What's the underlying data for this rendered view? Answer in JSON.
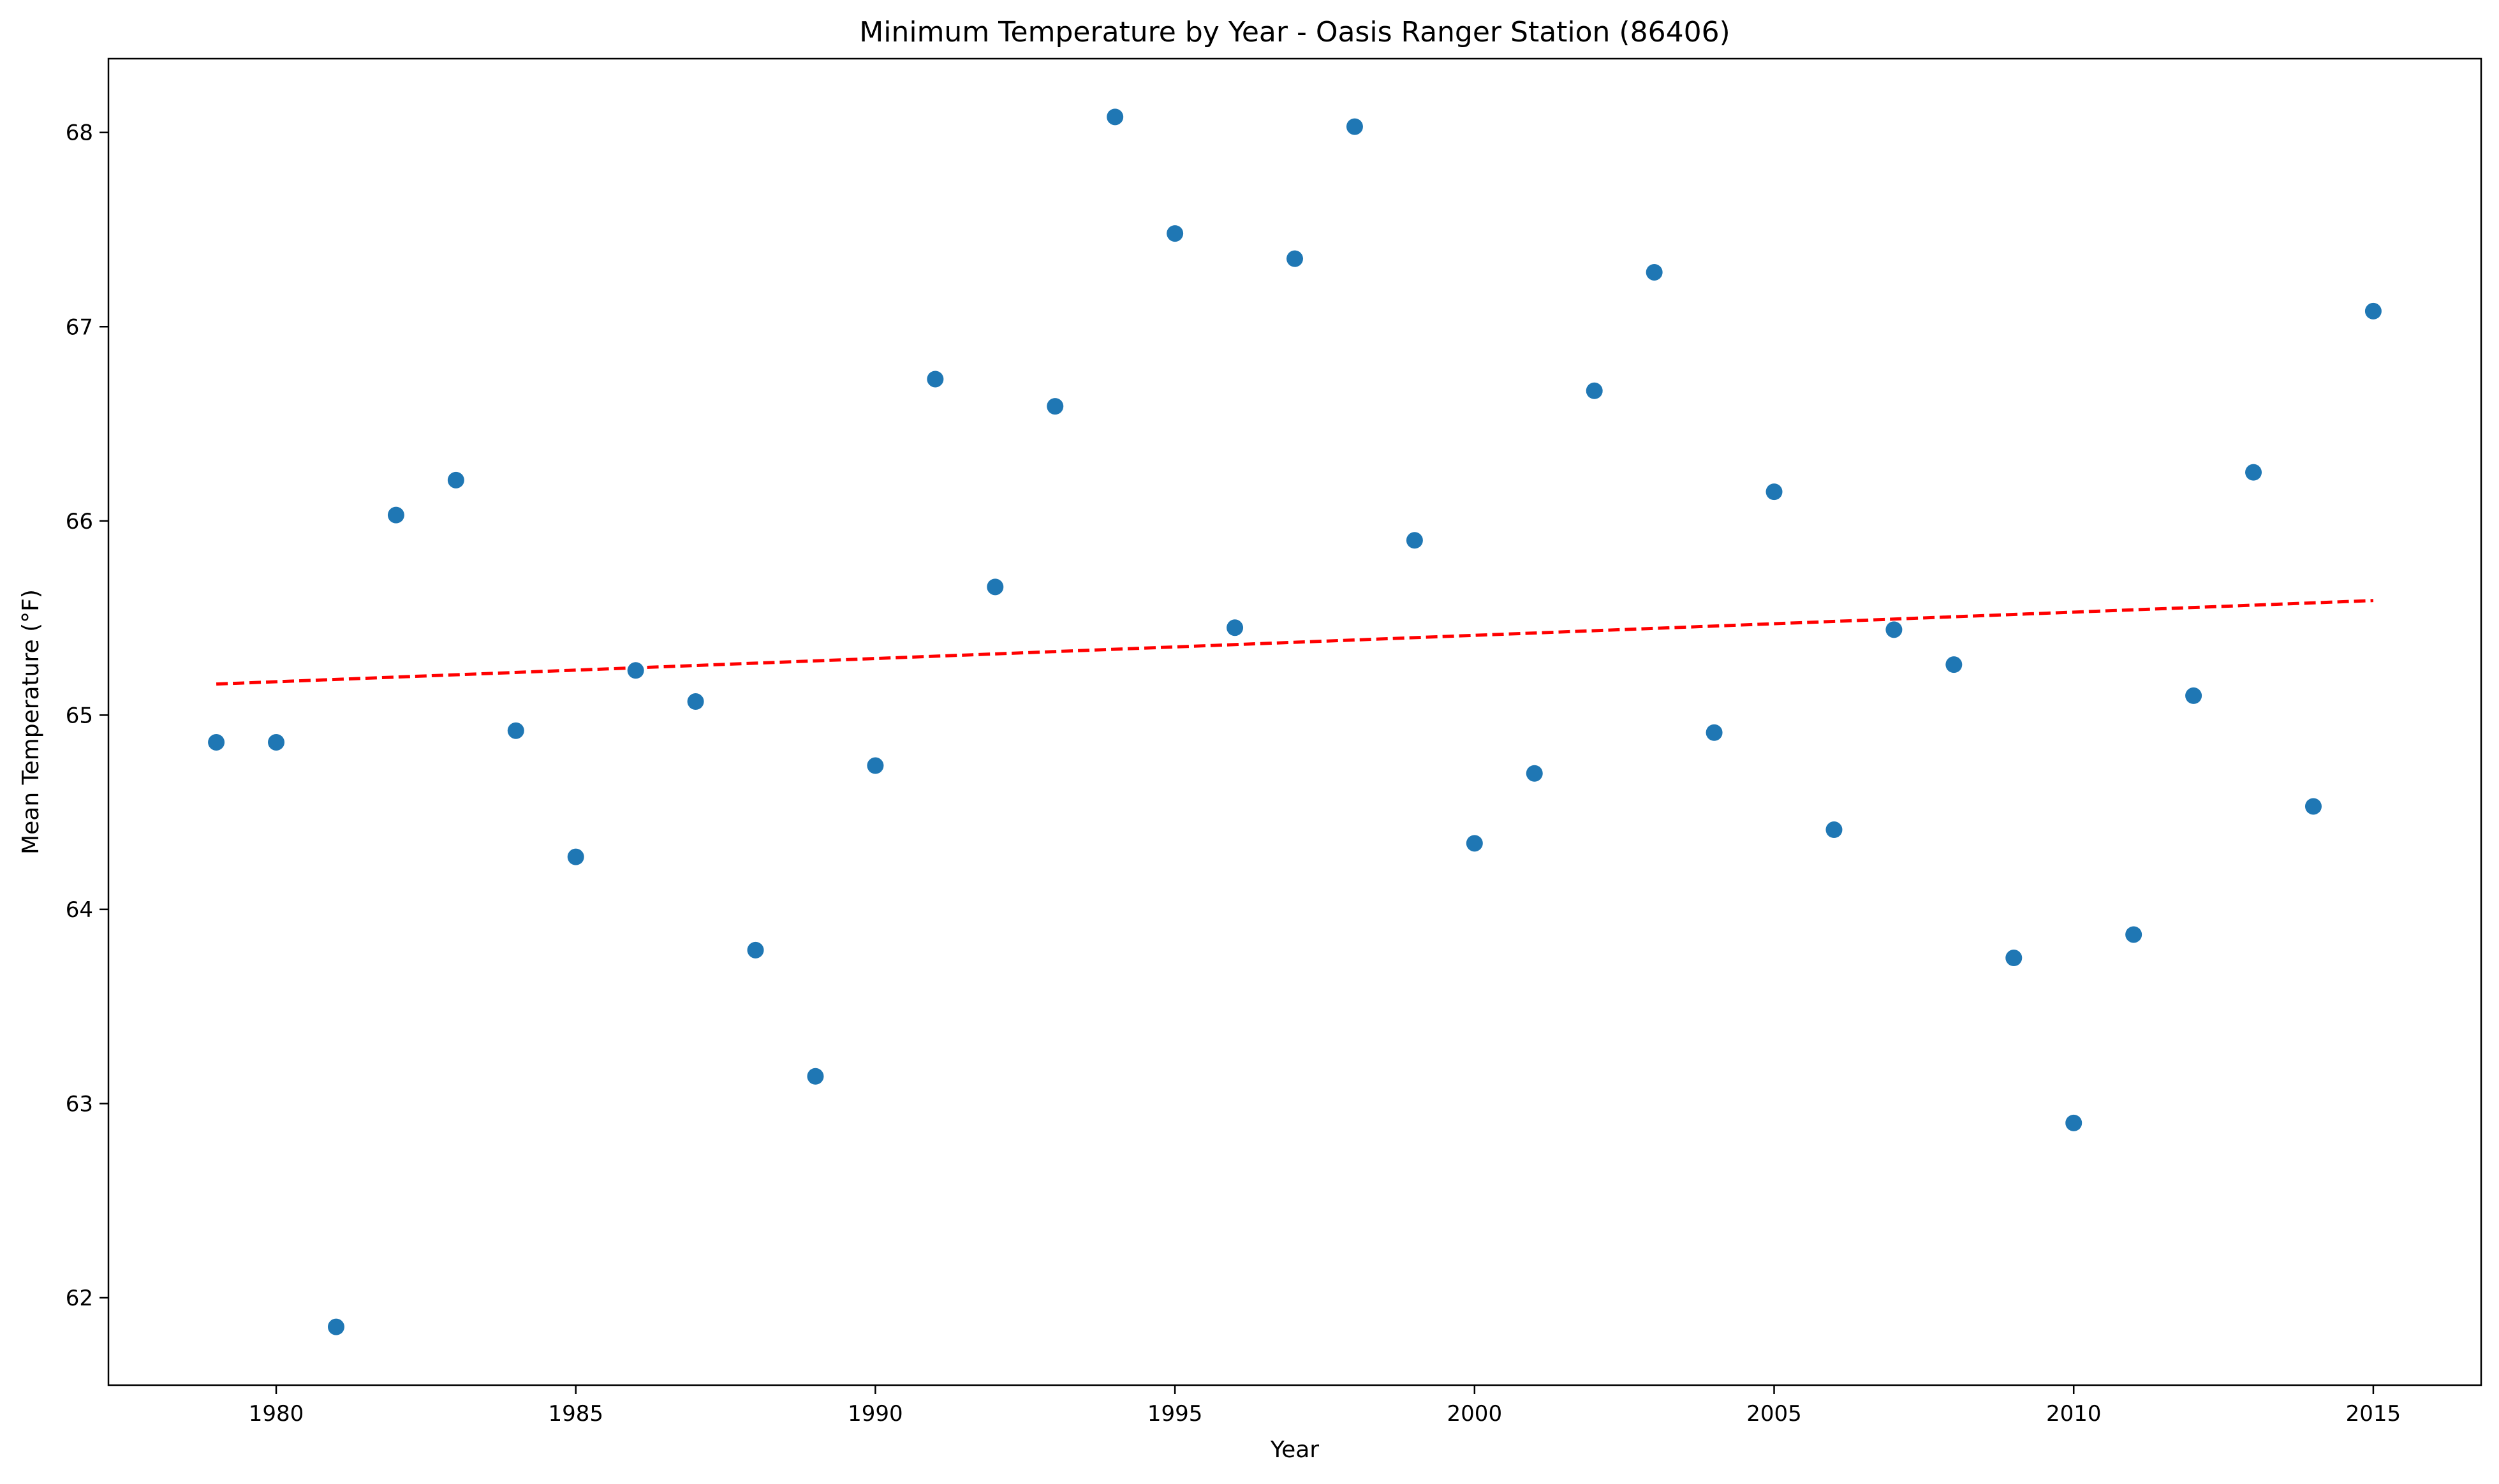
{
  "chart_data": {
    "type": "scatter",
    "title": "Minimum Temperature by Year - Oasis Ranger Station (86406)",
    "xlabel": "Year",
    "ylabel": "Mean Temperature (°F)",
    "xlim": [
      1977.2,
      2016.8
    ],
    "ylim": [
      61.55,
      68.38
    ],
    "x_ticks": [
      1980,
      1985,
      1990,
      1995,
      2000,
      2005,
      2010,
      2015
    ],
    "y_ticks": [
      62,
      63,
      64,
      65,
      66,
      67,
      68
    ],
    "grid": false,
    "marker_color": "#1f77b4",
    "trend_color": "#ff0000",
    "series": [
      {
        "x": [
          1979,
          1980,
          1981,
          1982,
          1983,
          1984,
          1985,
          1986,
          1987,
          1988,
          1989,
          1990,
          1991,
          1992,
          1993,
          1994,
          1995,
          1996,
          1997,
          1998,
          1999,
          2000,
          2001,
          2002,
          2003,
          2004,
          2005,
          2006,
          2007,
          2008,
          2009,
          2010,
          2011,
          2012,
          2013,
          2014,
          2015
        ],
        "y": [
          64.86,
          64.86,
          61.85,
          66.03,
          66.21,
          64.92,
          64.27,
          65.23,
          65.07,
          63.79,
          63.14,
          64.74,
          66.73,
          65.66,
          66.59,
          68.08,
          67.48,
          65.45,
          67.35,
          68.03,
          65.9,
          64.34,
          64.7,
          66.67,
          67.28,
          64.91,
          66.15,
          64.41,
          65.44,
          65.26,
          63.75,
          62.9,
          63.87,
          65.1,
          66.25,
          64.53,
          67.08
        ]
      }
    ],
    "trend_line": {
      "style": "dashed",
      "x": [
        1979,
        2015
      ],
      "y": [
        65.16,
        65.59
      ]
    }
  }
}
